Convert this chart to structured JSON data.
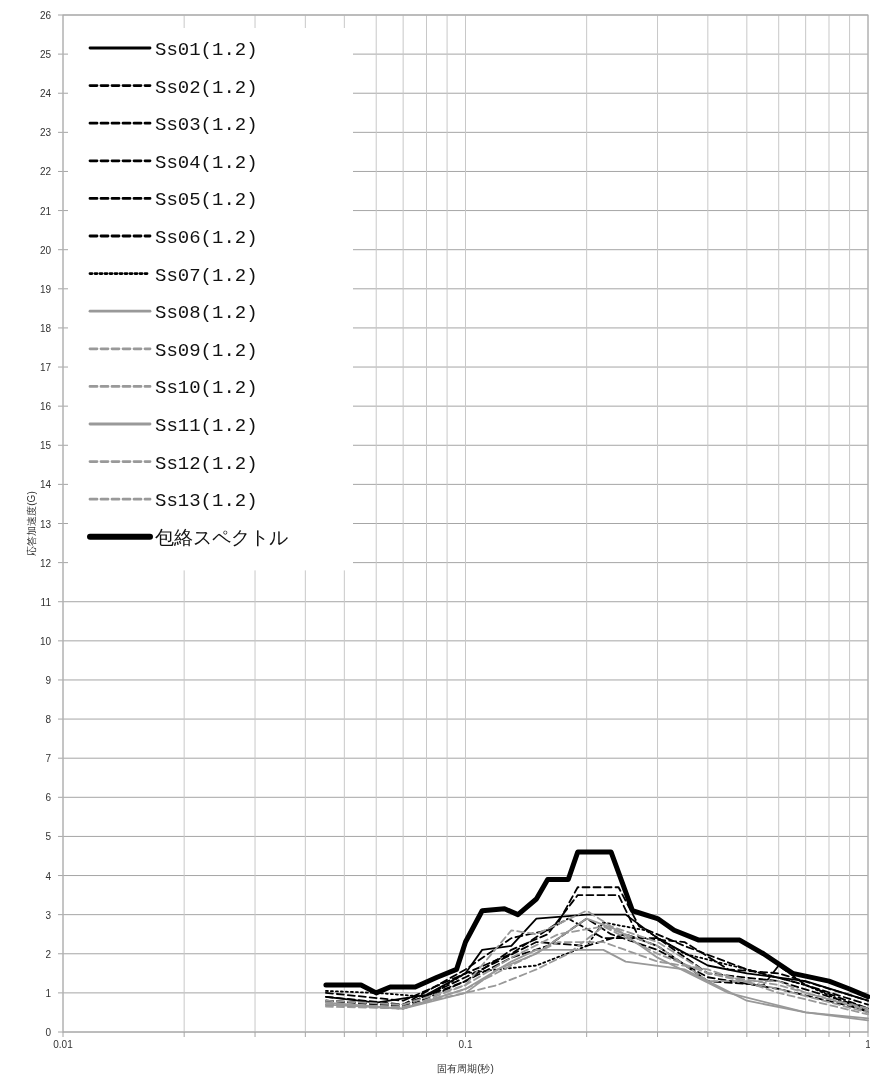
{
  "chart_data": {
    "type": "line",
    "xlabel": "固有周期(秒)",
    "ylabel": "応答加速度(G)",
    "log": "x",
    "grid": true,
    "legend": "top left",
    "xlim": [
      0.01,
      1
    ],
    "ylim": [
      0,
      26
    ],
    "xticks": [
      0.01,
      {
        "value": 0.02,
        "label": null
      },
      {
        "value": 0.03,
        "label": null
      },
      {
        "value": 0.04,
        "label": null
      },
      {
        "value": 0.05,
        "label": null
      },
      {
        "value": 0.06,
        "label": null
      },
      {
        "value": 0.07,
        "label": null
      },
      {
        "value": 0.08,
        "label": null
      },
      {
        "value": 0.09,
        "label": null
      },
      0.1,
      {
        "value": 0.2,
        "label": null
      },
      {
        "value": 0.3,
        "label": null
      },
      {
        "value": 0.4,
        "label": null
      },
      {
        "value": 0.5,
        "label": null
      },
      {
        "value": 0.6,
        "label": null
      },
      {
        "value": 0.7,
        "label": null
      },
      {
        "value": 0.8,
        "label": null
      },
      {
        "value": 0.9,
        "label": null
      },
      1
    ],
    "yticks": [
      0,
      1,
      2,
      3,
      4,
      5,
      6,
      7,
      8,
      9,
      10,
      11,
      12,
      13,
      14,
      15,
      16,
      17,
      18,
      19,
      20,
      21,
      22,
      23,
      24,
      25,
      26
    ],
    "series": [
      {
        "name": "Ss01(1.2)",
        "color": "#000000",
        "line_style": "solid",
        "x": [
          0.045,
          0.06,
          0.08,
          0.1,
          0.11,
          0.13,
          0.15,
          0.2,
          0.25,
          0.3,
          0.4,
          0.5,
          0.7,
          1.0
        ],
        "values": [
          0.9,
          0.75,
          0.95,
          1.5,
          2.1,
          2.2,
          2.9,
          3.0,
          3.0,
          2.4,
          1.7,
          1.5,
          1.3,
          0.8
        ]
      },
      {
        "name": "Ss02(1.2)",
        "color": "#000000",
        "line_style": "dashed",
        "x": [
          0.045,
          0.07,
          0.1,
          0.13,
          0.17,
          0.19,
          0.24,
          0.27,
          0.35,
          0.5,
          0.7,
          1.0
        ],
        "values": [
          1.0,
          0.8,
          1.5,
          2.0,
          2.8,
          3.7,
          3.7,
          2.7,
          2.2,
          1.6,
          1.2,
          0.7
        ]
      },
      {
        "name": "Ss03(1.2)",
        "color": "#000000",
        "line_style": "dashed",
        "x": [
          0.045,
          0.07,
          0.1,
          0.13,
          0.16,
          0.19,
          0.24,
          0.27,
          0.35,
          0.45,
          0.6,
          1.0
        ],
        "values": [
          0.8,
          0.7,
          1.3,
          2.1,
          2.5,
          3.5,
          3.5,
          2.4,
          2.3,
          1.6,
          1.5,
          0.8
        ]
      },
      {
        "name": "Ss04(1.2)",
        "color": "#000000",
        "line_style": "dashed",
        "x": [
          0.045,
          0.07,
          0.1,
          0.13,
          0.16,
          0.18,
          0.22,
          0.3,
          0.4,
          0.6,
          1.0
        ],
        "values": [
          0.9,
          0.7,
          1.6,
          2.4,
          2.6,
          2.9,
          2.4,
          2.4,
          1.5,
          1.3,
          0.6
        ]
      },
      {
        "name": "Ss05(1.2)",
        "color": "#000000",
        "line_style": "dashed",
        "x": [
          0.045,
          0.07,
          0.1,
          0.12,
          0.15,
          0.2,
          0.25,
          0.3,
          0.4,
          0.55,
          0.6,
          0.7,
          1.0
        ],
        "values": [
          0.8,
          0.65,
          1.4,
          1.8,
          2.3,
          2.2,
          2.5,
          2.2,
          1.3,
          1.2,
          1.7,
          1.2,
          0.6
        ]
      },
      {
        "name": "Ss06(1.2)",
        "color": "#000000",
        "line_style": "dashed",
        "x": [
          0.045,
          0.07,
          0.1,
          0.13,
          0.16,
          0.2,
          0.23,
          0.3,
          0.4,
          0.6,
          1.0
        ],
        "values": [
          0.7,
          0.6,
          1.3,
          1.9,
          2.2,
          2.9,
          2.5,
          2.1,
          1.4,
          1.1,
          0.55
        ]
      },
      {
        "name": "Ss07(1.2)",
        "color": "#000000",
        "line_style": "dotted",
        "x": [
          0.045,
          0.06,
          0.08,
          0.1,
          0.12,
          0.15,
          0.2,
          0.22,
          0.28,
          0.35,
          0.5,
          0.7,
          1.0
        ],
        "values": [
          1.05,
          1.0,
          0.9,
          1.5,
          1.6,
          1.7,
          2.2,
          2.8,
          2.6,
          2.0,
          1.6,
          1.2,
          0.5
        ]
      },
      {
        "name": "Ss08(1.2)",
        "color": "#999999",
        "line_style": "solid",
        "x": [
          0.045,
          0.07,
          0.1,
          0.13,
          0.15,
          0.2,
          0.22,
          0.25,
          0.35,
          0.5,
          0.7,
          1.0
        ],
        "values": [
          0.75,
          0.6,
          1.1,
          1.8,
          2.1,
          2.1,
          2.1,
          1.8,
          1.6,
          0.8,
          0.5,
          0.35
        ]
      },
      {
        "name": "Ss09(1.2)",
        "color": "#999999",
        "line_style": "dashed",
        "x": [
          0.045,
          0.07,
          0.1,
          0.12,
          0.15,
          0.18,
          0.22,
          0.3,
          0.4,
          0.6,
          0.7,
          1.0
        ],
        "values": [
          0.7,
          0.65,
          1.0,
          1.2,
          1.6,
          2.0,
          2.7,
          2.2,
          1.3,
          1.3,
          1.0,
          0.6
        ]
      },
      {
        "name": "Ss10(1.2)",
        "color": "#999999",
        "line_style": "dashed",
        "x": [
          0.045,
          0.07,
          0.1,
          0.13,
          0.15,
          0.2,
          0.23,
          0.3,
          0.4,
          0.6,
          1.0
        ],
        "values": [
          0.8,
          0.7,
          1.2,
          2.6,
          2.5,
          3.1,
          2.7,
          2.3,
          1.5,
          1.2,
          0.55
        ]
      },
      {
        "name": "Ss11(1.2)",
        "color": "#999999",
        "line_style": "solid",
        "x": [
          0.045,
          0.07,
          0.1,
          0.12,
          0.15,
          0.2,
          0.24,
          0.3,
          0.45,
          0.7,
          1.0
        ],
        "values": [
          0.7,
          0.6,
          1.0,
          1.6,
          2.0,
          2.9,
          2.6,
          1.9,
          1.0,
          0.5,
          0.3
        ]
      },
      {
        "name": "Ss12(1.2)",
        "color": "#999999",
        "line_style": "dashed",
        "x": [
          0.045,
          0.07,
          0.1,
          0.13,
          0.17,
          0.22,
          0.3,
          0.4,
          0.6,
          1.0
        ],
        "values": [
          0.75,
          0.6,
          1.2,
          1.9,
          2.5,
          2.7,
          2.0,
          1.5,
          1.1,
          0.5
        ]
      },
      {
        "name": "Ss13(1.2)",
        "color": "#999999",
        "line_style": "dashed",
        "x": [
          0.045,
          0.07,
          0.1,
          0.13,
          0.17,
          0.22,
          0.3,
          0.4,
          0.6,
          1.0
        ],
        "values": [
          0.65,
          0.6,
          1.1,
          1.7,
          2.3,
          2.3,
          1.8,
          1.6,
          1.0,
          0.45
        ]
      },
      {
        "name": "包絡スペクトル",
        "color": "#000000",
        "line_style": "solid",
        "x": [
          0.045,
          0.055,
          0.06,
          0.065,
          0.075,
          0.085,
          0.095,
          0.1,
          0.11,
          0.125,
          0.135,
          0.15,
          0.16,
          0.18,
          0.19,
          0.23,
          0.26,
          0.3,
          0.33,
          0.38,
          0.48,
          0.55,
          0.65,
          0.8,
          0.9,
          1.0
        ],
        "values": [
          1.2,
          1.2,
          1.0,
          1.15,
          1.15,
          1.4,
          1.6,
          2.3,
          3.1,
          3.15,
          3.0,
          3.4,
          3.9,
          3.9,
          4.6,
          4.6,
          3.1,
          2.9,
          2.6,
          2.35,
          2.35,
          2.0,
          1.5,
          1.3,
          1.1,
          0.9
        ]
      }
    ]
  }
}
